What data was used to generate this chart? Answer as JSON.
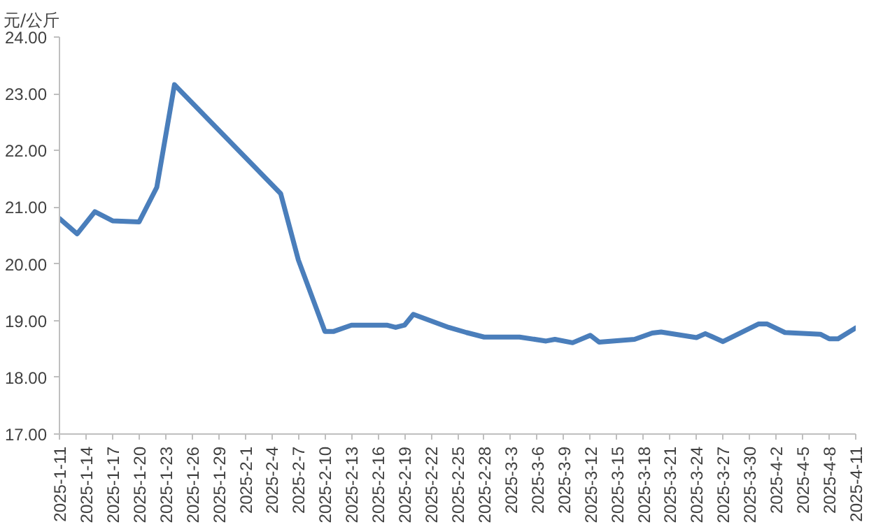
{
  "chart_data": {
    "type": "line",
    "ylabel": "元/公斤",
    "x": [
      "2025-01-11",
      "2025-01-13",
      "2025-01-15",
      "2025-01-17",
      "2025-01-20",
      "2025-01-22",
      "2025-01-24",
      "2025-02-05",
      "2025-02-07",
      "2025-02-10",
      "2025-02-11",
      "2025-02-13",
      "2025-02-17",
      "2025-02-18",
      "2025-02-19",
      "2025-02-20",
      "2025-02-24",
      "2025-02-26",
      "2025-02-28",
      "2025-03-04",
      "2025-03-07",
      "2025-03-08",
      "2025-03-10",
      "2025-03-12",
      "2025-03-13",
      "2025-03-17",
      "2025-03-19",
      "2025-03-20",
      "2025-03-24",
      "2025-03-25",
      "2025-03-27",
      "2025-03-31",
      "2025-04-01",
      "2025-04-03",
      "2025-04-07",
      "2025-04-08",
      "2025-04-09",
      "2025-04-11"
    ],
    "series": [
      {
        "color": "#4a7ebb",
        "values": [
          20.8,
          20.53,
          20.92,
          20.76,
          20.74,
          21.35,
          23.16,
          21.24,
          20.07,
          18.81,
          18.81,
          18.92,
          18.92,
          18.88,
          18.92,
          19.11,
          18.88,
          18.79,
          18.71,
          18.71,
          18.64,
          18.67,
          18.61,
          18.74,
          18.62,
          18.67,
          18.78,
          18.8,
          18.7,
          18.77,
          18.63,
          18.94,
          18.94,
          18.79,
          18.76,
          18.68,
          18.68,
          18.87
        ]
      }
    ],
    "xlim": [
      "2025-01-11",
      "2025-04-11"
    ],
    "xticks": [
      {
        "value": "2025-01-11",
        "label": "2025-1-11"
      },
      {
        "value": "2025-01-14",
        "label": "2025-1-14"
      },
      {
        "value": "2025-01-17",
        "label": "2025-1-17"
      },
      {
        "value": "2025-01-20",
        "label": "2025-1-20"
      },
      {
        "value": "2025-01-23",
        "label": "2025-1-23"
      },
      {
        "value": "2025-01-26",
        "label": "2025-1-26"
      },
      {
        "value": "2025-01-29",
        "label": "2025-1-29"
      },
      {
        "value": "2025-02-01",
        "label": "2025-2-1"
      },
      {
        "value": "2025-02-04",
        "label": "2025-2-4"
      },
      {
        "value": "2025-02-07",
        "label": "2025-2-7"
      },
      {
        "value": "2025-02-10",
        "label": "2025-2-10"
      },
      {
        "value": "2025-02-13",
        "label": "2025-2-13"
      },
      {
        "value": "2025-02-16",
        "label": "2025-2-16"
      },
      {
        "value": "2025-02-19",
        "label": "2025-2-19"
      },
      {
        "value": "2025-02-22",
        "label": "2025-2-22"
      },
      {
        "value": "2025-02-25",
        "label": "2025-2-25"
      },
      {
        "value": "2025-02-28",
        "label": "2025-2-28"
      },
      {
        "value": "2025-03-03",
        "label": "2025-3-3"
      },
      {
        "value": "2025-03-06",
        "label": "2025-3-6"
      },
      {
        "value": "2025-03-09",
        "label": "2025-3-9"
      },
      {
        "value": "2025-03-12",
        "label": "2025-3-12"
      },
      {
        "value": "2025-03-15",
        "label": "2025-3-15"
      },
      {
        "value": "2025-03-18",
        "label": "2025-3-18"
      },
      {
        "value": "2025-03-21",
        "label": "2025-3-21"
      },
      {
        "value": "2025-03-24",
        "label": "2025-3-24"
      },
      {
        "value": "2025-03-27",
        "label": "2025-3-27"
      },
      {
        "value": "2025-03-30",
        "label": "2025-3-30"
      },
      {
        "value": "2025-04-02",
        "label": "2025-4-2"
      },
      {
        "value": "2025-04-05",
        "label": "2025-4-5"
      },
      {
        "value": "2025-04-08",
        "label": "2025-4-8"
      },
      {
        "value": "2025-04-11",
        "label": "2025-4-11"
      }
    ],
    "ylim": [
      17,
      24
    ],
    "yticks": [
      {
        "value": 17,
        "label": "17.00"
      },
      {
        "value": 18,
        "label": "18.00"
      },
      {
        "value": 19,
        "label": "19.00"
      },
      {
        "value": 20,
        "label": "20.00"
      },
      {
        "value": 21,
        "label": "21.00"
      },
      {
        "value": 22,
        "label": "22.00"
      },
      {
        "value": 23,
        "label": "23.00"
      },
      {
        "value": 24,
        "label": "24.00"
      }
    ],
    "grid": false,
    "marker": "none",
    "line_style": "solid"
  }
}
